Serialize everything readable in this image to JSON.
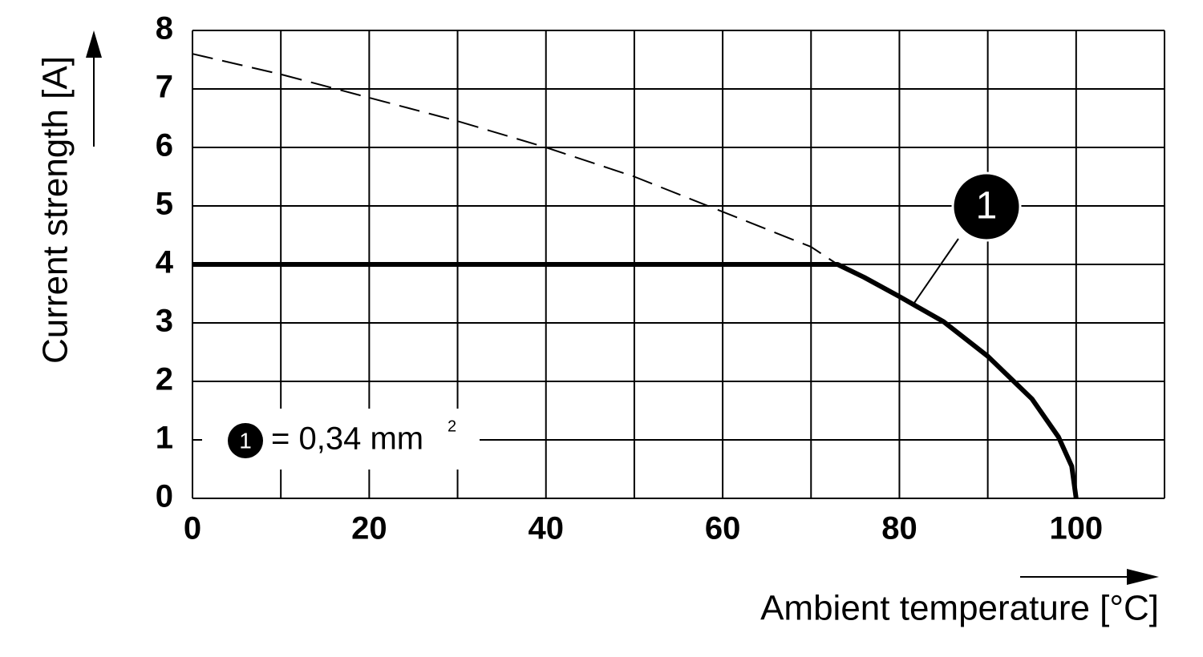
{
  "chart_data": {
    "type": "line",
    "y_label": "Current strength [A]",
    "x_label": "Ambient temperature [°C]",
    "xlim": [
      0,
      110
    ],
    "xticks": [
      0,
      20,
      40,
      60,
      80,
      100
    ],
    "x_minor_ticks": [
      10,
      30,
      50,
      70,
      90,
      110
    ],
    "ylim": [
      0,
      8
    ],
    "yticks": [
      0,
      1,
      2,
      3,
      4,
      5,
      6,
      7,
      8
    ],
    "grid": true,
    "series": [
      {
        "name": "1",
        "color": "#000000",
        "style": "solid",
        "x": [
          0,
          73,
          76,
          80,
          85,
          90,
          95,
          98,
          99.5,
          100
        ],
        "values": [
          4,
          4,
          3.78,
          3.45,
          3.02,
          2.43,
          1.7,
          1.05,
          0.55,
          0
        ]
      },
      {
        "color": "#000000",
        "style": "dashed",
        "x": [
          0,
          10,
          20,
          30,
          40,
          50,
          60,
          70,
          73
        ],
        "values": [
          7.6,
          7.25,
          6.85,
          6.45,
          6.0,
          5.5,
          4.9,
          4.3,
          4.0
        ]
      }
    ],
    "legend": {
      "marker": "1",
      "text": "= 0,34 mm",
      "superscript": "2"
    }
  }
}
